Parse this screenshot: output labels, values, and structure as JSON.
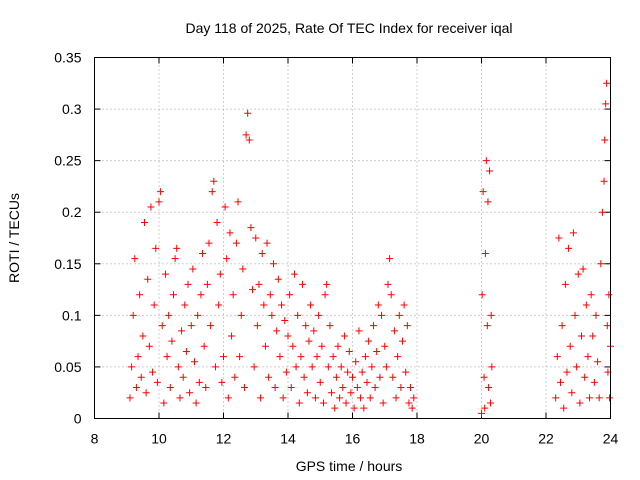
{
  "chart_data": {
    "type": "scatter",
    "title": "Day 118 of 2025, Rate Of TEC Index for receiver iqal",
    "xlabel": "GPS time / hours",
    "ylabel": "ROTI / TECUs",
    "xlim": [
      8,
      24
    ],
    "ylim": [
      0,
      0.35
    ],
    "xticks": [
      "8",
      "10",
      "12",
      "14",
      "16",
      "18",
      "20",
      "22",
      "24"
    ],
    "yticks": [
      "0",
      "0.05",
      "0.1",
      "0.15",
      "0.2",
      "0.25",
      "0.3",
      "0.35"
    ],
    "grid": true,
    "marker": "+",
    "color": "#ff0000",
    "series": [
      {
        "name": "ROTI",
        "points": [
          [
            9.1,
            0.02
          ],
          [
            9.15,
            0.05
          ],
          [
            9.2,
            0.1
          ],
          [
            9.25,
            0.155
          ],
          [
            9.3,
            0.03
          ],
          [
            9.35,
            0.06
          ],
          [
            9.4,
            0.12
          ],
          [
            9.45,
            0.04
          ],
          [
            9.5,
            0.08
          ],
          [
            9.55,
            0.19
          ],
          [
            9.6,
            0.025
          ],
          [
            9.65,
            0.135
          ],
          [
            9.7,
            0.07
          ],
          [
            9.75,
            0.205
          ],
          [
            9.8,
            0.045
          ],
          [
            9.85,
            0.11
          ],
          [
            9.9,
            0.165
          ],
          [
            9.95,
            0.035
          ],
          [
            10.0,
            0.21
          ],
          [
            10.05,
            0.22
          ],
          [
            10.1,
            0.09
          ],
          [
            10.15,
            0.015
          ],
          [
            10.2,
            0.14
          ],
          [
            10.25,
            0.06
          ],
          [
            10.3,
            0.1
          ],
          [
            10.35,
            0.03
          ],
          [
            10.4,
            0.075
          ],
          [
            10.45,
            0.12
          ],
          [
            10.5,
            0.155
          ],
          [
            10.55,
            0.165
          ],
          [
            10.6,
            0.05
          ],
          [
            10.65,
            0.02
          ],
          [
            10.7,
            0.085
          ],
          [
            10.75,
            0.04
          ],
          [
            10.8,
            0.11
          ],
          [
            10.85,
            0.065
          ],
          [
            10.9,
            0.13
          ],
          [
            10.95,
            0.025
          ],
          [
            11.0,
            0.09
          ],
          [
            11.05,
            0.145
          ],
          [
            11.1,
            0.055
          ],
          [
            11.15,
            0.015
          ],
          [
            11.2,
            0.1
          ],
          [
            11.25,
            0.035
          ],
          [
            11.3,
            0.12
          ],
          [
            11.35,
            0.16
          ],
          [
            11.4,
            0.07
          ],
          [
            11.45,
            0.03
          ],
          [
            11.5,
            0.13
          ],
          [
            11.55,
            0.17
          ],
          [
            11.6,
            0.09
          ],
          [
            11.65,
            0.22
          ],
          [
            11.7,
            0.23
          ],
          [
            11.75,
            0.05
          ],
          [
            11.8,
            0.19
          ],
          [
            11.85,
            0.11
          ],
          [
            11.9,
            0.14
          ],
          [
            11.95,
            0.035
          ],
          [
            12.0,
            0.06
          ],
          [
            12.05,
            0.205
          ],
          [
            12.1,
            0.155
          ],
          [
            12.15,
            0.02
          ],
          [
            12.2,
            0.18
          ],
          [
            12.25,
            0.08
          ],
          [
            12.3,
            0.12
          ],
          [
            12.35,
            0.04
          ],
          [
            12.4,
            0.17
          ],
          [
            12.45,
            0.21
          ],
          [
            12.5,
            0.06
          ],
          [
            12.55,
            0.1
          ],
          [
            12.6,
            0.145
          ],
          [
            12.65,
            0.03
          ],
          [
            12.7,
            0.275
          ],
          [
            12.75,
            0.296
          ],
          [
            12.8,
            0.27
          ],
          [
            12.85,
            0.185
          ],
          [
            12.9,
            0.125
          ],
          [
            12.95,
            0.05
          ],
          [
            13.0,
            0.175
          ],
          [
            13.05,
            0.09
          ],
          [
            13.1,
            0.13
          ],
          [
            13.15,
            0.02
          ],
          [
            13.2,
            0.16
          ],
          [
            13.25,
            0.11
          ],
          [
            13.3,
            0.07
          ],
          [
            13.35,
            0.17
          ],
          [
            13.4,
            0.04
          ],
          [
            13.45,
            0.12
          ],
          [
            13.5,
            0.1
          ],
          [
            13.55,
            0.15
          ],
          [
            13.6,
            0.03
          ],
          [
            13.65,
            0.085
          ],
          [
            13.7,
            0.135
          ],
          [
            13.75,
            0.06
          ],
          [
            13.8,
            0.11
          ],
          [
            13.85,
            0.02
          ],
          [
            13.9,
            0.095
          ],
          [
            13.95,
            0.045
          ],
          [
            14.0,
            0.08
          ],
          [
            14.05,
            0.12
          ],
          [
            14.1,
            0.03
          ],
          [
            14.15,
            0.07
          ],
          [
            14.2,
            0.14
          ],
          [
            14.25,
            0.05
          ],
          [
            14.3,
            0.1
          ],
          [
            14.35,
            0.015
          ],
          [
            14.4,
            0.06
          ],
          [
            14.45,
            0.13
          ],
          [
            14.5,
            0.04
          ],
          [
            14.55,
            0.09
          ],
          [
            14.6,
            0.025
          ],
          [
            14.65,
            0.075
          ],
          [
            14.7,
            0.11
          ],
          [
            14.75,
            0.05
          ],
          [
            14.8,
            0.085
          ],
          [
            14.85,
            0.02
          ],
          [
            14.9,
            0.06
          ],
          [
            14.95,
            0.1
          ],
          [
            15.0,
            0.035
          ],
          [
            15.05,
            0.07
          ],
          [
            15.1,
            0.015
          ],
          [
            15.15,
            0.12
          ],
          [
            15.2,
            0.13
          ],
          [
            15.25,
            0.05
          ],
          [
            15.3,
            0.09
          ],
          [
            15.35,
            0.025
          ],
          [
            15.4,
            0.06
          ],
          [
            15.45,
            0.01
          ],
          [
            15.5,
            0.04
          ],
          [
            15.55,
            0.07
          ],
          [
            15.6,
            0.02
          ],
          [
            15.65,
            0.05
          ],
          [
            15.7,
            0.03
          ],
          [
            15.75,
            0.08
          ],
          [
            15.8,
            0.015
          ],
          [
            15.85,
            0.045
          ],
          [
            15.9,
            0.065
          ],
          [
            15.95,
            0.025
          ],
          [
            16.0,
            0.04
          ],
          [
            16.05,
            0.01
          ],
          [
            16.1,
            0.055
          ],
          [
            16.15,
            0.03
          ],
          [
            16.2,
            0.085
          ],
          [
            16.25,
            0.02
          ],
          [
            16.3,
            0.045
          ],
          [
            16.35,
            0.01
          ],
          [
            16.4,
            0.06
          ],
          [
            16.45,
            0.035
          ],
          [
            16.5,
            0.075
          ],
          [
            16.55,
            0.02
          ],
          [
            16.6,
            0.05
          ],
          [
            16.65,
            0.09
          ],
          [
            16.7,
            0.03
          ],
          [
            16.75,
            0.065
          ],
          [
            16.8,
            0.11
          ],
          [
            16.85,
            0.04
          ],
          [
            16.9,
            0.1
          ],
          [
            16.95,
            0.015
          ],
          [
            17.0,
            0.07
          ],
          [
            17.05,
            0.05
          ],
          [
            17.1,
            0.13
          ],
          [
            17.15,
            0.155
          ],
          [
            17.2,
            0.12
          ],
          [
            17.25,
            0.04
          ],
          [
            17.3,
            0.085
          ],
          [
            17.35,
            0.02
          ],
          [
            17.4,
            0.06
          ],
          [
            17.45,
            0.1
          ],
          [
            17.5,
            0.03
          ],
          [
            17.55,
            0.075
          ],
          [
            17.6,
            0.11
          ],
          [
            17.65,
            0.045
          ],
          [
            17.7,
            0.09
          ],
          [
            17.75,
            0.015
          ],
          [
            17.8,
            0.03
          ],
          [
            17.85,
            0.01
          ],
          [
            17.9,
            0.02
          ],
          [
            20.0,
            0.005
          ],
          [
            20.02,
            0.12
          ],
          [
            20.05,
            0.22
          ],
          [
            20.08,
            0.04
          ],
          [
            20.1,
            0.01
          ],
          [
            20.12,
            0.16
          ],
          [
            20.15,
            0.25
          ],
          [
            20.18,
            0.09
          ],
          [
            20.2,
            0.21
          ],
          [
            20.22,
            0.03
          ],
          [
            20.25,
            0.24
          ],
          [
            20.28,
            0.015
          ],
          [
            20.3,
            0.1
          ],
          [
            20.32,
            0.05
          ],
          [
            22.3,
            0.02
          ],
          [
            22.35,
            0.06
          ],
          [
            22.4,
            0.175
          ],
          [
            22.45,
            0.035
          ],
          [
            22.5,
            0.09
          ],
          [
            22.55,
            0.01
          ],
          [
            22.6,
            0.13
          ],
          [
            22.65,
            0.045
          ],
          [
            22.7,
            0.165
          ],
          [
            22.75,
            0.07
          ],
          [
            22.8,
            0.025
          ],
          [
            22.85,
            0.18
          ],
          [
            22.9,
            0.1
          ],
          [
            22.95,
            0.05
          ],
          [
            23.0,
            0.14
          ],
          [
            23.05,
            0.015
          ],
          [
            23.1,
            0.08
          ],
          [
            23.15,
            0.145
          ],
          [
            23.2,
            0.04
          ],
          [
            23.25,
            0.11
          ],
          [
            23.3,
            0.06
          ],
          [
            23.35,
            0.02
          ],
          [
            23.4,
            0.12
          ],
          [
            23.45,
            0.08
          ],
          [
            23.5,
            0.035
          ],
          [
            23.55,
            0.1
          ],
          [
            23.6,
            0.055
          ],
          [
            23.65,
            0.02
          ],
          [
            23.7,
            0.15
          ],
          [
            23.75,
            0.2
          ],
          [
            23.8,
            0.23
          ],
          [
            23.82,
            0.27
          ],
          [
            23.85,
            0.305
          ],
          [
            23.88,
            0.325
          ],
          [
            23.9,
            0.09
          ],
          [
            23.92,
            0.045
          ],
          [
            23.95,
            0.12
          ],
          [
            23.97,
            0.02
          ],
          [
            24.0,
            0.07
          ]
        ]
      }
    ]
  }
}
